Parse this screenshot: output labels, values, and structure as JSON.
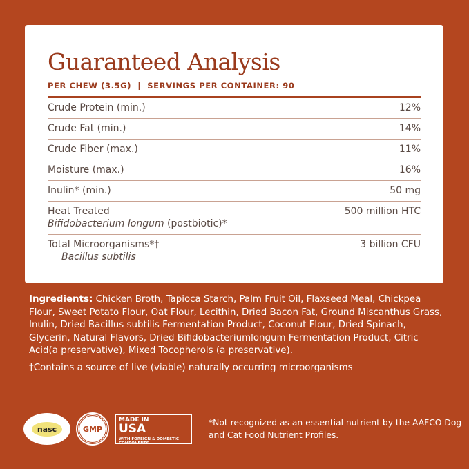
{
  "card": {
    "title": "Guaranteed Analysis",
    "subtitle": "PER CHEW (3.5G)  |  SERVINGS PER CONTAINER: 90",
    "rows": [
      {
        "label": "Crude Protein (min.)",
        "value": "12%"
      },
      {
        "label": "Crude Fat (min.)",
        "value": "14%"
      },
      {
        "label": "Crude Fiber (max.)",
        "value": "11%"
      },
      {
        "label": "Moisture (max.)",
        "value": "16%"
      },
      {
        "label": "Inulin* (min.)",
        "value": "50 mg"
      },
      {
        "label": "Heat Treated",
        "sub_italic": "Bifidobacterium longum",
        "sub_rest": " (postbiotic)*",
        "value": "500 million HTC"
      },
      {
        "label": "Total Microorganisms*†",
        "sub_italic": "Bacillus subtilis",
        "value": "3 billion CFU"
      }
    ]
  },
  "ingredients": {
    "label": "Ingredients:",
    "text": " Chicken Broth, Tapioca Starch, Palm Fruit Oil, Flaxseed Meal, Chickpea Flour, Sweet Potato Flour, Oat Flour, Lecithin, Dried Bacon Fat, Ground Miscanthus Grass, Inulin, Dried Bacillus subtilis Fermentation Product, Coconut Flour, Dried Spinach, Glycerin, Natural Flavors, Dried Bifidobacteriumlongum Fermentation Product, Citric Acid(a preservative), Mixed Tocopherols (a preservative)."
  },
  "live_note": "†Contains a source of live (viable) naturally occurring microorganisms",
  "badges": {
    "nasc": "nasc",
    "gmp": "GMP",
    "usa_top": "MADE IN",
    "usa_main": "USA",
    "usa_bottom": "WITH FOREIGN & DOMESTIC COMPONENTS"
  },
  "footnote": "*Not recognized as an essential nutrient by the AAFCO Dog and Cat Food Nutrient Profiles.",
  "colors": {
    "background": "#b4461f",
    "title": "#9a3a1c"
  }
}
